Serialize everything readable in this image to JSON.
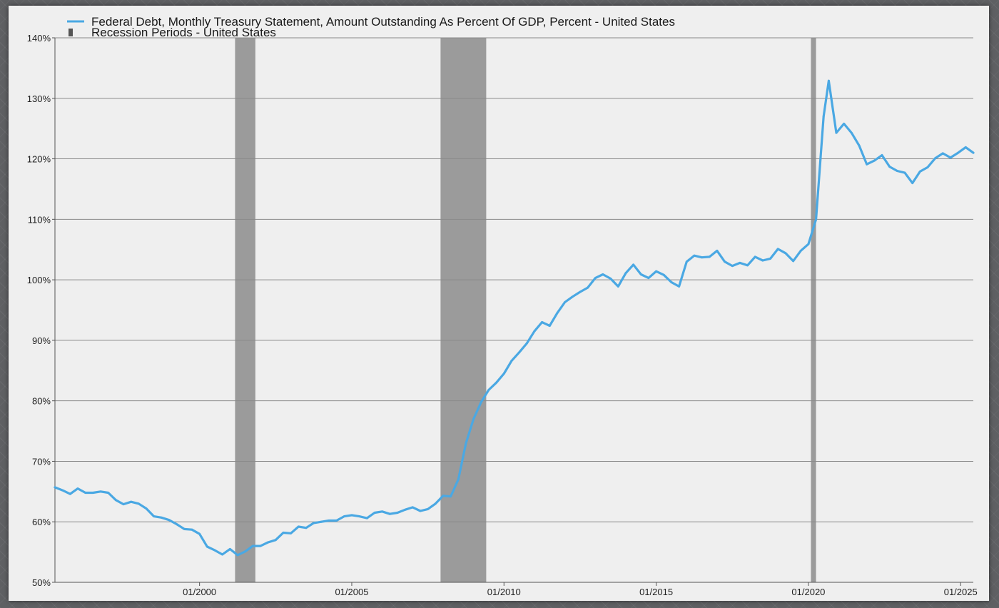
{
  "chart_data": {
    "type": "line",
    "title": "",
    "xlabel": "",
    "ylabel": "",
    "x_range": [
      "1995-04",
      "2025-06"
    ],
    "ylim": [
      50,
      140
    ],
    "y_ticks": [
      50,
      60,
      70,
      80,
      90,
      100,
      110,
      120,
      130,
      140
    ],
    "y_tick_labels": [
      "50%",
      "60%",
      "70%",
      "80%",
      "90%",
      "100%",
      "110%",
      "120%",
      "130%",
      "140%"
    ],
    "x_ticks": [
      "2000-01",
      "2005-01",
      "2010-01",
      "2015-01",
      "2020-01",
      "2025-01"
    ],
    "x_tick_labels": [
      "01/2000",
      "01/2005",
      "01/2010",
      "01/2015",
      "01/2020",
      "01/2025"
    ],
    "grid": "horizontal",
    "legend_position": "top-left",
    "legend": [
      {
        "label": "Federal Debt, Monthly Treasury Statement, Amount Outstanding As Percent Of GDP, Percent - United States",
        "kind": "line",
        "color": "#4aa8e3"
      },
      {
        "label": "Recession Periods - United States",
        "kind": "bar",
        "color": "#8c8c8c"
      }
    ],
    "series": [
      {
        "name": "Federal Debt, Monthly Treasury Statement, Amount Outstanding As Percent Of GDP, Percent - United States",
        "color": "#4aa8e3",
        "points": [
          [
            "1995-04",
            65.7
          ],
          [
            "1995-07",
            65.2
          ],
          [
            "1995-10",
            64.6
          ],
          [
            "1996-01",
            65.5
          ],
          [
            "1996-04",
            64.8
          ],
          [
            "1996-07",
            64.8
          ],
          [
            "1996-10",
            65.0
          ],
          [
            "1997-01",
            64.8
          ],
          [
            "1997-04",
            63.6
          ],
          [
            "1997-07",
            62.9
          ],
          [
            "1997-10",
            63.3
          ],
          [
            "1998-01",
            63.0
          ],
          [
            "1998-04",
            62.2
          ],
          [
            "1998-07",
            60.9
          ],
          [
            "1998-10",
            60.7
          ],
          [
            "1999-01",
            60.3
          ],
          [
            "1999-04",
            59.6
          ],
          [
            "1999-07",
            58.8
          ],
          [
            "1999-10",
            58.7
          ],
          [
            "2000-01",
            58.0
          ],
          [
            "2000-04",
            55.9
          ],
          [
            "2000-07",
            55.3
          ],
          [
            "2000-10",
            54.6
          ],
          [
            "2001-01",
            55.5
          ],
          [
            "2001-04",
            54.5
          ],
          [
            "2001-07",
            55.1
          ],
          [
            "2001-10",
            56.0
          ],
          [
            "2002-01",
            56.0
          ],
          [
            "2002-04",
            56.6
          ],
          [
            "2002-07",
            57.0
          ],
          [
            "2002-10",
            58.2
          ],
          [
            "2003-01",
            58.1
          ],
          [
            "2003-04",
            59.2
          ],
          [
            "2003-07",
            59.0
          ],
          [
            "2003-10",
            59.8
          ],
          [
            "2004-01",
            60.0
          ],
          [
            "2004-04",
            60.2
          ],
          [
            "2004-07",
            60.2
          ],
          [
            "2004-10",
            60.9
          ],
          [
            "2005-01",
            61.1
          ],
          [
            "2005-04",
            60.9
          ],
          [
            "2005-07",
            60.6
          ],
          [
            "2005-10",
            61.5
          ],
          [
            "2006-01",
            61.7
          ],
          [
            "2006-04",
            61.3
          ],
          [
            "2006-07",
            61.5
          ],
          [
            "2006-10",
            62.0
          ],
          [
            "2007-01",
            62.4
          ],
          [
            "2007-04",
            61.8
          ],
          [
            "2007-07",
            62.1
          ],
          [
            "2007-10",
            63.0
          ],
          [
            "2008-01",
            64.3
          ],
          [
            "2008-04",
            64.2
          ],
          [
            "2008-07",
            67.0
          ],
          [
            "2008-10",
            73.0
          ],
          [
            "2009-01",
            77.0
          ],
          [
            "2009-04",
            79.8
          ],
          [
            "2009-07",
            81.8
          ],
          [
            "2009-10",
            83.0
          ],
          [
            "2010-01",
            84.5
          ],
          [
            "2010-04",
            86.6
          ],
          [
            "2010-07",
            88.0
          ],
          [
            "2010-10",
            89.5
          ],
          [
            "2011-01",
            91.5
          ],
          [
            "2011-04",
            93.0
          ],
          [
            "2011-07",
            92.4
          ],
          [
            "2011-10",
            94.5
          ],
          [
            "2012-01",
            96.3
          ],
          [
            "2012-04",
            97.2
          ],
          [
            "2012-07",
            98.0
          ],
          [
            "2012-10",
            98.7
          ],
          [
            "2013-01",
            100.3
          ],
          [
            "2013-04",
            100.9
          ],
          [
            "2013-07",
            100.2
          ],
          [
            "2013-10",
            98.9
          ],
          [
            "2014-01",
            101.1
          ],
          [
            "2014-04",
            102.5
          ],
          [
            "2014-07",
            100.9
          ],
          [
            "2014-10",
            100.3
          ],
          [
            "2015-01",
            101.4
          ],
          [
            "2015-04",
            100.8
          ],
          [
            "2015-07",
            99.6
          ],
          [
            "2015-10",
            98.9
          ],
          [
            "2016-01",
            103.0
          ],
          [
            "2016-04",
            104.0
          ],
          [
            "2016-07",
            103.7
          ],
          [
            "2016-10",
            103.8
          ],
          [
            "2017-01",
            104.8
          ],
          [
            "2017-04",
            103.0
          ],
          [
            "2017-07",
            102.3
          ],
          [
            "2017-10",
            102.8
          ],
          [
            "2018-01",
            102.4
          ],
          [
            "2018-04",
            103.8
          ],
          [
            "2018-07",
            103.2
          ],
          [
            "2018-10",
            103.5
          ],
          [
            "2019-01",
            105.1
          ],
          [
            "2019-04",
            104.4
          ],
          [
            "2019-07",
            103.1
          ],
          [
            "2019-10",
            104.8
          ],
          [
            "2020-01",
            105.9
          ],
          [
            "2020-04",
            110.0
          ],
          [
            "2020-07",
            127.0
          ],
          [
            "2020-09",
            132.9
          ],
          [
            "2020-12",
            124.3
          ],
          [
            "2021-03",
            125.8
          ],
          [
            "2021-06",
            124.3
          ],
          [
            "2021-09",
            122.2
          ],
          [
            "2021-12",
            119.1
          ],
          [
            "2022-03",
            119.7
          ],
          [
            "2022-06",
            120.6
          ],
          [
            "2022-09",
            118.7
          ],
          [
            "2022-12",
            118.0
          ],
          [
            "2023-03",
            117.7
          ],
          [
            "2023-06",
            116.0
          ],
          [
            "2023-09",
            117.9
          ],
          [
            "2023-12",
            118.6
          ],
          [
            "2024-03",
            120.1
          ],
          [
            "2024-06",
            120.9
          ],
          [
            "2024-09",
            120.2
          ],
          [
            "2024-12",
            121.0
          ],
          [
            "2025-03",
            121.9
          ],
          [
            "2025-06",
            121.0
          ]
        ]
      }
    ],
    "recessions": [
      {
        "start": "2001-03",
        "end": "2001-11"
      },
      {
        "start": "2007-12",
        "end": "2009-06"
      },
      {
        "start": "2020-02",
        "end": "2020-04"
      }
    ]
  }
}
